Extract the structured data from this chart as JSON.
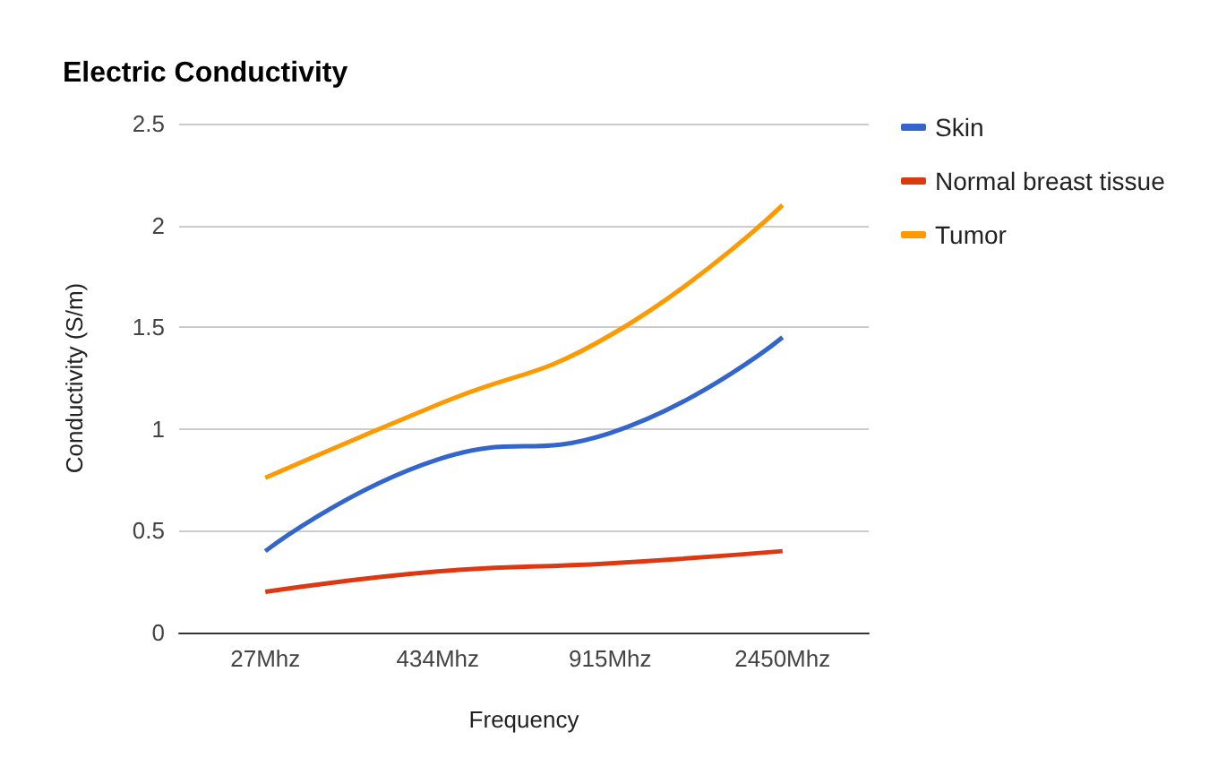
{
  "chart_data": {
    "type": "line",
    "title": "Electric Conductivity",
    "xlabel": "Frequency",
    "ylabel": "Conductivity (S/m)",
    "categories": [
      "27Mhz",
      "434Mhz",
      "915Mhz",
      "2450Mhz"
    ],
    "series": [
      {
        "name": "Skin",
        "color": "#3366cc",
        "values": [
          0.4,
          0.85,
          0.98,
          1.45
        ]
      },
      {
        "name": "Normal breast tissue",
        "color": "#dc3912",
        "values": [
          0.2,
          0.3,
          0.34,
          0.4
        ]
      },
      {
        "name": "Tumor",
        "color": "#ff9900",
        "values": [
          0.76,
          1.12,
          1.46,
          2.1
        ]
      }
    ],
    "ylim": [
      0,
      2.5
    ],
    "yticks": [
      0,
      0.5,
      1,
      1.5,
      2,
      2.5
    ],
    "grid": "y",
    "legend": "right",
    "marker": "none",
    "line_style": "solid"
  }
}
